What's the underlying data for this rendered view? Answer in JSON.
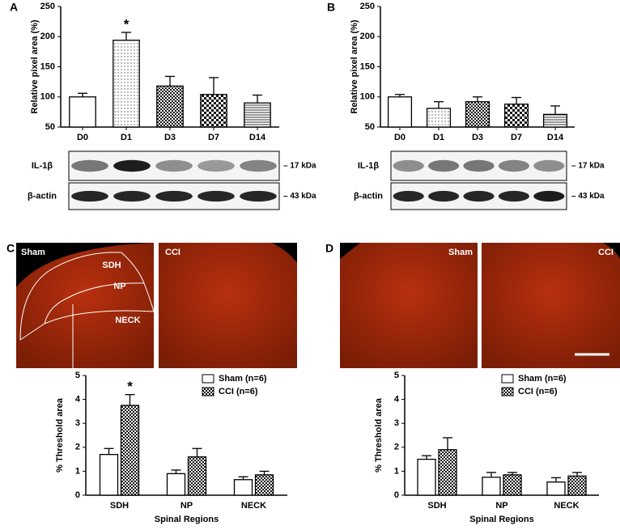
{
  "chart_data": [
    {
      "type": "bar",
      "label": "A",
      "ylabel": "Relative pixel area (%)",
      "categories": [
        "D0",
        "D1",
        "D3",
        "D7",
        "D14"
      ],
      "values": [
        100,
        194,
        118,
        104,
        90
      ],
      "errors": [
        6,
        13,
        16,
        28,
        13
      ],
      "fills": [
        "white",
        "dots",
        "checker",
        "checker-large",
        "stripes"
      ],
      "ylim": [
        50,
        250
      ],
      "yticks": [
        50,
        100,
        150,
        200,
        250
      ],
      "annotations": [
        {
          "text": "*",
          "x": "D1"
        }
      ]
    },
    {
      "type": "bar",
      "label": "B",
      "ylabel": "Relative pixel area (%)",
      "categories": [
        "D0",
        "D1",
        "D3",
        "D7",
        "D14"
      ],
      "values": [
        100,
        81,
        92,
        88,
        71
      ],
      "errors": [
        4,
        11,
        8,
        11,
        14
      ],
      "fills": [
        "white",
        "dots",
        "checker",
        "checker-large",
        "stripes"
      ],
      "ylim": [
        50,
        250
      ],
      "yticks": [
        50,
        100,
        150,
        200,
        250
      ]
    },
    {
      "type": "grouped-bar",
      "ylabel": "% Threshold area",
      "xlabel": "Spinal Regions",
      "categories": [
        "SDH",
        "NP",
        "NECK"
      ],
      "series": [
        {
          "name": "Sham (n=6)",
          "fill": "white",
          "values": [
            1.7,
            0.9,
            0.65
          ],
          "errors": [
            0.25,
            0.15,
            0.12
          ]
        },
        {
          "name": "CCI (n=6)",
          "fill": "checker",
          "values": [
            3.75,
            1.6,
            0.85
          ],
          "errors": [
            0.45,
            0.35,
            0.15
          ]
        }
      ],
      "ylim": [
        0,
        5
      ],
      "yticks": [
        0,
        1,
        2,
        3,
        4,
        5
      ],
      "annotations": [
        {
          "text": "*",
          "x": "SDH"
        }
      ]
    },
    {
      "type": "grouped-bar",
      "ylabel": "% Threshold area",
      "xlabel": "Spinal Regions",
      "categories": [
        "SDH",
        "NP",
        "NECK"
      ],
      "series": [
        {
          "name": "Sham (n=6)",
          "fill": "white",
          "values": [
            1.5,
            0.75,
            0.55
          ],
          "errors": [
            0.15,
            0.2,
            0.18
          ]
        },
        {
          "name": "CCI (n=6)",
          "fill": "checker",
          "values": [
            1.9,
            0.85,
            0.8
          ],
          "errors": [
            0.5,
            0.1,
            0.15
          ]
        }
      ],
      "ylim": [
        0,
        5
      ],
      "yticks": [
        0,
        1,
        2,
        3,
        4,
        5
      ]
    }
  ],
  "blots": [
    {
      "rows": [
        {
          "label": "IL-1β",
          "size": "– 17 kDa"
        },
        {
          "label": "β-actin",
          "size": "– 43 kDa"
        }
      ]
    },
    {
      "rows": [
        {
          "label": "IL-1β",
          "size": "– 17 kDa"
        },
        {
          "label": "β-actin",
          "size": "– 43 kDa"
        }
      ]
    }
  ],
  "images": [
    {
      "label": "C",
      "panels": [
        {
          "title": "Sham",
          "regions": [
            "SDH",
            "NP",
            "NECK"
          ]
        },
        {
          "title": "CCI"
        }
      ]
    },
    {
      "label": "D",
      "panels": [
        {
          "title": "Sham"
        },
        {
          "title": "CCI"
        }
      ]
    }
  ]
}
